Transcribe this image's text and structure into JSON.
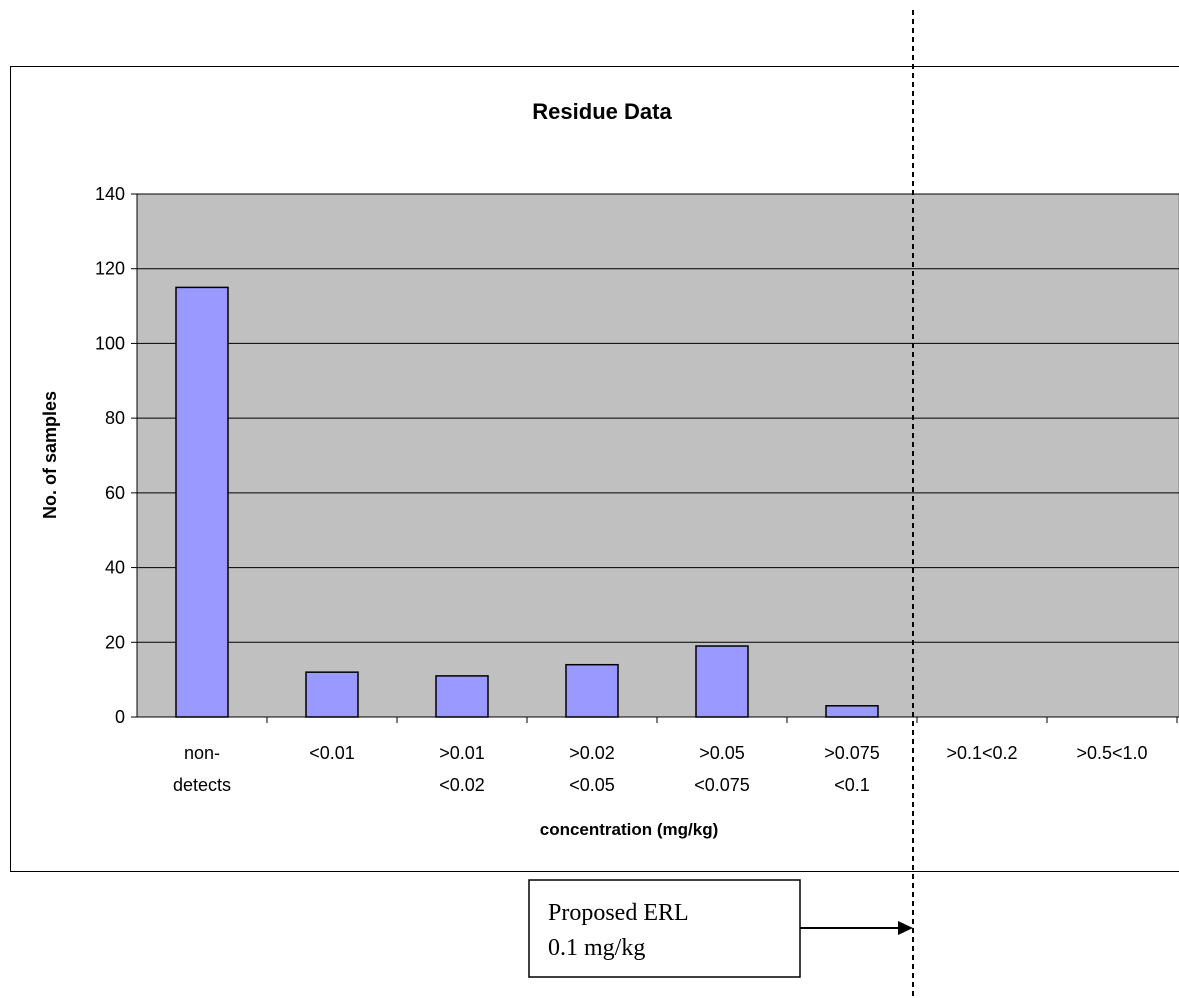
{
  "chart_data": {
    "type": "bar",
    "title": "Residue Data",
    "xlabel": "concentration (mg/kg)",
    "ylabel": "No. of samples",
    "ylim": [
      0,
      140
    ],
    "yticks": [
      "0",
      "20",
      "40",
      "60",
      "80",
      "100",
      "120",
      "140"
    ],
    "grid": true,
    "categories": [
      [
        "non-",
        "detects"
      ],
      [
        "<0.01"
      ],
      [
        ">0.01",
        "<0.02"
      ],
      [
        ">0.02",
        "<0.05"
      ],
      [
        ">0.05",
        "<0.075"
      ],
      [
        ">0.075",
        "<0.1"
      ],
      [
        ">0.1<0.2"
      ],
      [
        ">0.5<1.0"
      ]
    ],
    "values": [
      115,
      12,
      11,
      14,
      19,
      3,
      0,
      0
    ],
    "colors": {
      "bar": "#9999ff",
      "plot_background": "#c0c0c0",
      "outline": "#000000"
    }
  },
  "annotation": {
    "lines": [
      "Proposed ERL",
      "0.1 mg/kg"
    ]
  }
}
